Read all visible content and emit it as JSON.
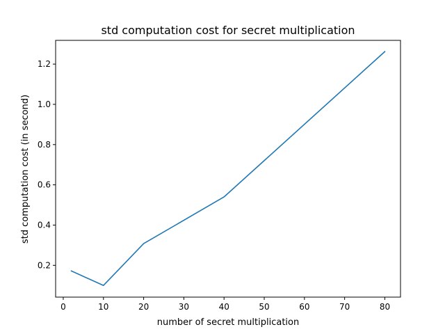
{
  "chart_data": {
    "type": "line",
    "title": "std computation cost for secret multiplication",
    "xlabel": "number of secret multiplication",
    "ylabel": "std computation cost (in second)",
    "xlim": [
      -1.9,
      83.9
    ],
    "ylim": [
      0.042,
      1.318
    ],
    "xticks": [
      0,
      10,
      20,
      30,
      40,
      50,
      60,
      70,
      80
    ],
    "yticks": [
      0.2,
      0.4,
      0.6,
      0.8,
      1.0,
      1.2
    ],
    "ytick_labels": [
      "0.2",
      "0.4",
      "0.6",
      "0.8",
      "1.0",
      "1.2"
    ],
    "grid": false,
    "series": [
      {
        "color": "#1f77b4",
        "x": [
          2,
          10,
          20,
          40,
          80
        ],
        "y": [
          0.172,
          0.1,
          0.308,
          0.54,
          1.262
        ]
      }
    ]
  }
}
